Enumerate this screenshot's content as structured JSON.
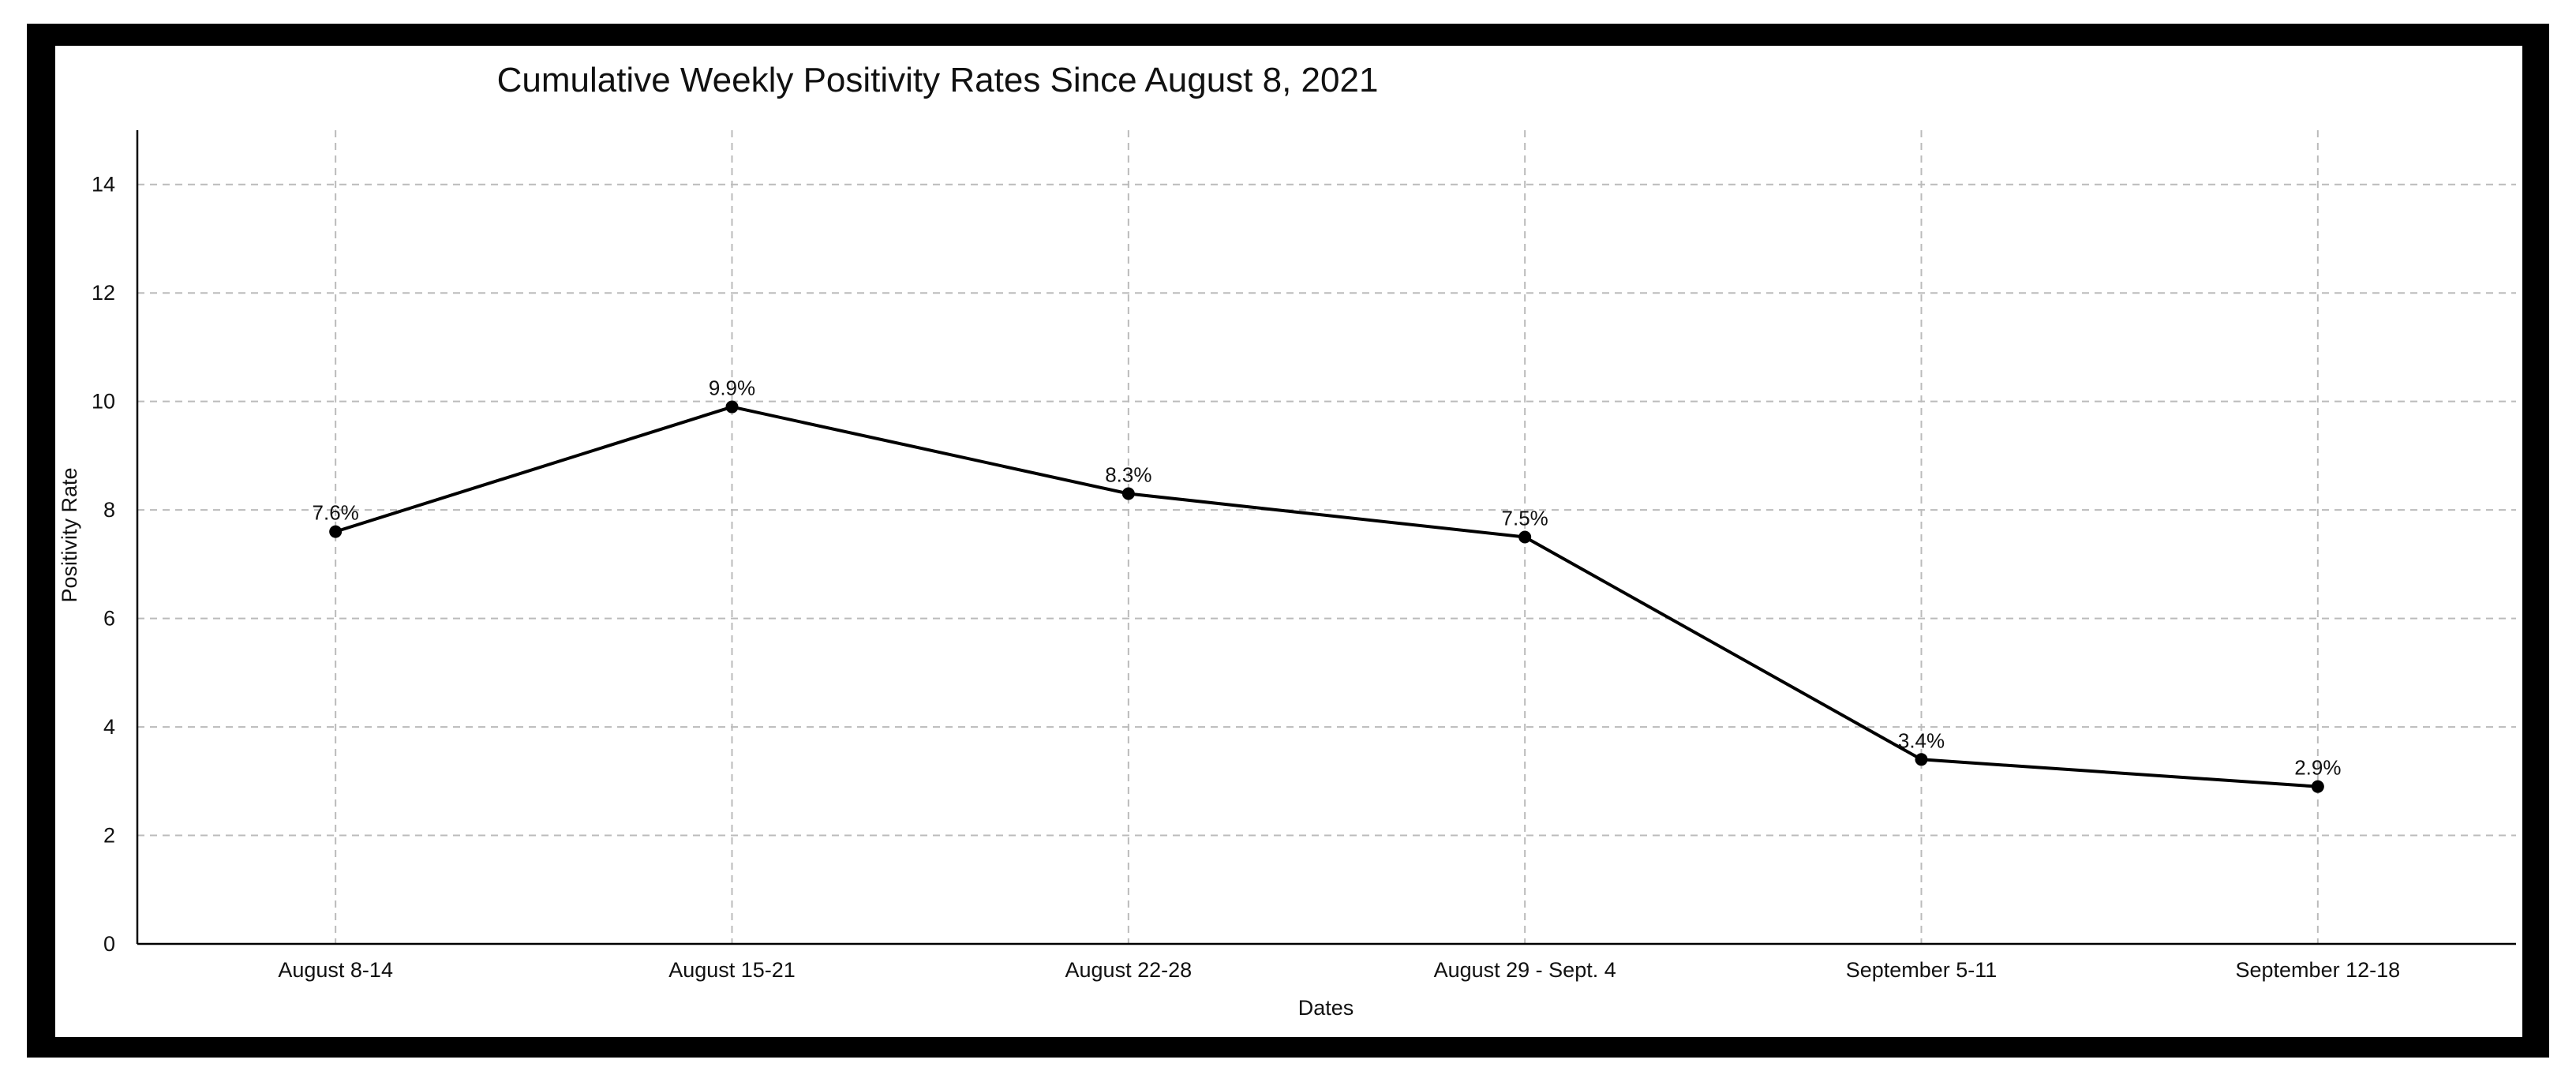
{
  "chart_data": {
    "type": "line",
    "title": "Cumulative Weekly Positivity Rates Since August 8, 2021",
    "xlabel": "Dates",
    "ylabel": "Positivity Rate",
    "categories": [
      "August 8-14",
      "August 15-21",
      "August 22-28",
      "August 29 - Sept. 4",
      "September 5-11",
      "September 12-18"
    ],
    "series": [
      {
        "values": [
          7.6,
          9.9,
          8.3,
          7.5,
          3.4,
          2.9
        ],
        "labels": [
          "7.6%",
          "9.9%",
          "8.3%",
          "7.5%",
          "3.4%",
          "2.9%"
        ],
        "color": "#000000"
      }
    ],
    "ylim": [
      0,
      15
    ],
    "yticks": [
      0,
      2,
      4,
      6,
      8,
      10,
      12,
      14
    ],
    "grid": true,
    "grid_style": "dashed",
    "legend": "none",
    "frame_color": "#000000",
    "grid_color": "#bbbbbb"
  }
}
